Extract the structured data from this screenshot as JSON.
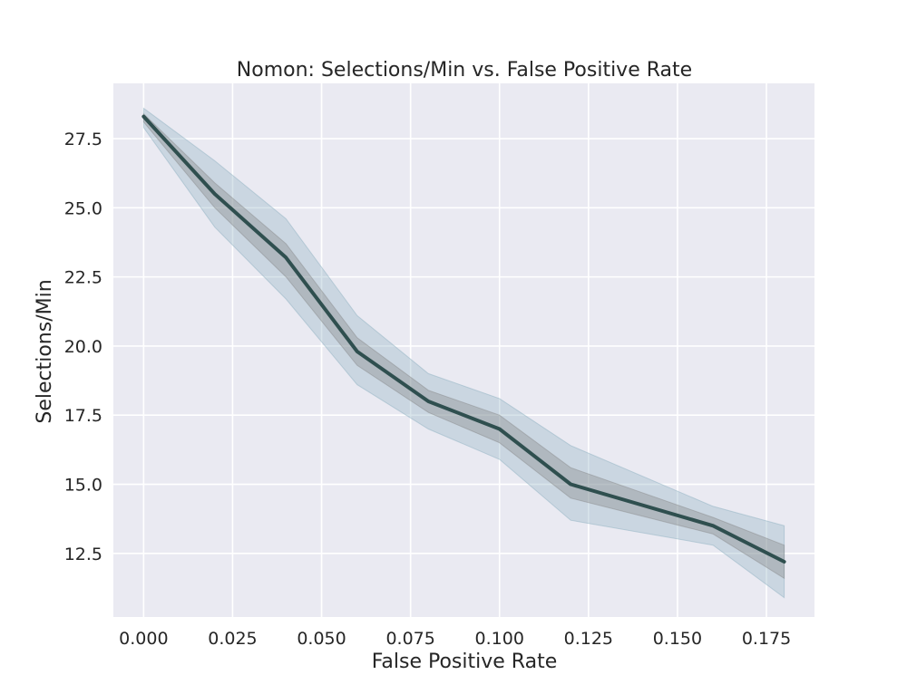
{
  "chart_data": {
    "type": "line",
    "title": "Nomon: Selections/Min vs. False Positive Rate",
    "xlabel": "False Positive Rate",
    "ylabel": "Selections/Min",
    "xlim": [
      -0.0085,
      0.1885
    ],
    "ylim": [
      10.2,
      29.5
    ],
    "xticks": [
      0.0,
      0.025,
      0.05,
      0.075,
      0.1,
      0.125,
      0.15,
      0.175
    ],
    "xtick_labels": [
      "0.000",
      "0.025",
      "0.050",
      "0.075",
      "0.100",
      "0.125",
      "0.150",
      "0.175"
    ],
    "yticks": [
      12.5,
      15.0,
      17.5,
      20.0,
      22.5,
      25.0,
      27.5
    ],
    "ytick_labels": [
      "12.5",
      "15.0",
      "17.5",
      "20.0",
      "22.5",
      "25.0",
      "27.5"
    ],
    "grid": true,
    "series": [
      {
        "x": [
          0.0,
          0.02,
          0.04,
          0.06,
          0.08,
          0.1,
          0.12,
          0.16,
          0.18
        ],
        "y": [
          28.3,
          25.5,
          23.2,
          19.8,
          18.0,
          17.0,
          15.0,
          13.5,
          12.2
        ],
        "inner_lower": [
          28.1,
          25.0,
          22.5,
          19.3,
          17.6,
          16.5,
          14.5,
          13.2,
          11.6
        ],
        "inner_upper": [
          28.4,
          25.9,
          23.7,
          20.3,
          18.4,
          17.5,
          15.6,
          13.8,
          12.8
        ],
        "outer_lower": [
          27.9,
          24.3,
          21.7,
          18.6,
          17.0,
          15.9,
          13.7,
          12.8,
          10.9
        ],
        "outer_upper": [
          28.6,
          26.7,
          24.6,
          21.1,
          19.0,
          18.1,
          16.4,
          14.2,
          13.5
        ]
      }
    ],
    "colors": {
      "plot_background": "#EAEAF2",
      "grid": "#FFFFFF",
      "line": "#2F4F4F",
      "inner_band": "#808080",
      "outer_band": "#8FB2C2",
      "text": "#262626"
    }
  }
}
